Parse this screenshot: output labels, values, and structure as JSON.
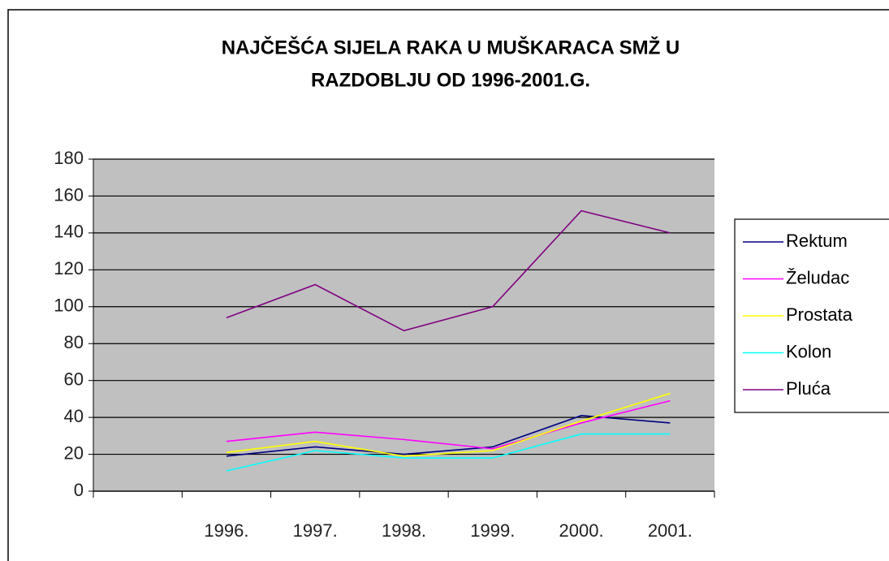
{
  "chart_data": {
    "type": "line",
    "title": [
      "NAJČEŠĆA SIJELA RAKA U MUŠKARACA SMŽ U",
      "RAZDOBLJU OD 1996-2001.G."
    ],
    "categories": [
      null,
      "1996.",
      "1997.",
      "1998.",
      "1999.",
      "2000.",
      "2001."
    ],
    "series": [
      {
        "name": "Rektum",
        "color": "#000080",
        "values": [
          null,
          19,
          24,
          20,
          24,
          41,
          37
        ]
      },
      {
        "name": "Želudac",
        "color": "#ff00ff",
        "values": [
          null,
          27,
          32,
          28,
          23,
          37,
          49
        ]
      },
      {
        "name": "Prostata",
        "color": "#ffff00",
        "values": [
          null,
          21,
          27,
          19,
          22,
          38,
          53
        ]
      },
      {
        "name": "Kolon",
        "color": "#00ffff",
        "values": [
          null,
          11,
          22,
          18,
          18,
          31,
          31
        ]
      },
      {
        "name": "Pluća",
        "color": "#800080",
        "values": [
          null,
          94,
          112,
          87,
          100,
          152,
          140
        ]
      }
    ],
    "ylim": [
      0,
      180
    ],
    "yticks": [
      0,
      20,
      40,
      60,
      80,
      100,
      120,
      140,
      160,
      180
    ],
    "grid": true,
    "legend": "right"
  }
}
